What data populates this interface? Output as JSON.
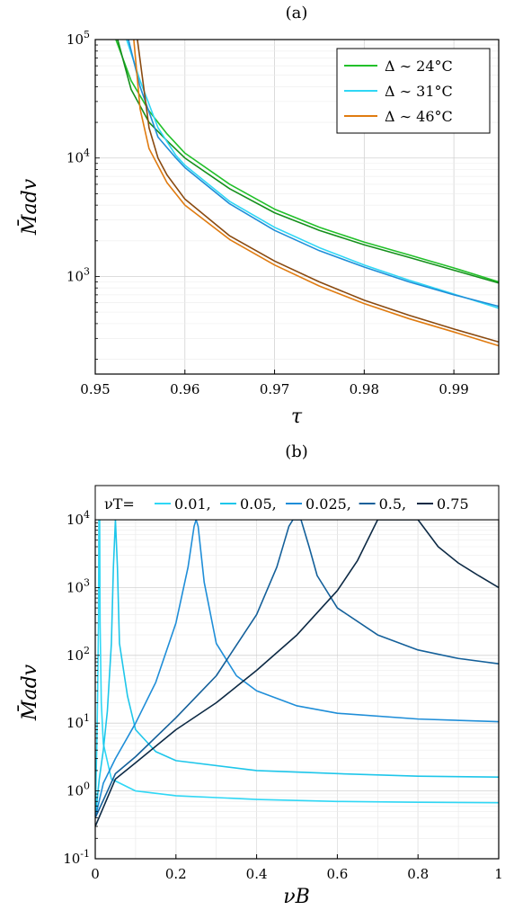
{
  "chart_data": [
    {
      "panel_label": "(a)",
      "type": "line",
      "xlabel": "τ",
      "ylabel": "M̄adv",
      "xlim": [
        0.95,
        0.995
      ],
      "ylim": [
        150,
        100000
      ],
      "yscale": "log",
      "grid": true,
      "legend_position": "top-right",
      "x_ticks": [
        "0.95",
        "0.96",
        "0.97",
        "0.98",
        "0.99"
      ],
      "y_ticks": [
        "10^3",
        "10^4",
        "10^5"
      ],
      "series": [
        {
          "name": "Δ ∼ 24°C",
          "color": "#22c02a",
          "role": "legend",
          "x": [
            0.9523,
            0.954,
            0.956,
            0.958,
            0.96,
            0.965,
            0.97,
            0.975,
            0.98,
            0.985,
            0.99,
            0.995
          ],
          "y": [
            100000,
            45000,
            25000,
            16000,
            11000,
            6000,
            3700,
            2600,
            1950,
            1520,
            1180,
            900
          ]
        },
        {
          "name": "",
          "color": "#15901c",
          "role": "pair",
          "x": [
            0.9525,
            0.954,
            0.956,
            0.958,
            0.96,
            0.965,
            0.97,
            0.975,
            0.98,
            0.985,
            0.99,
            0.995
          ],
          "y": [
            100000,
            38000,
            20000,
            14000,
            10000,
            5500,
            3450,
            2450,
            1850,
            1450,
            1130,
            880
          ]
        },
        {
          "name": "Δ ∼ 31°C",
          "color": "#2fd7f5",
          "role": "legend",
          "x": [
            0.9535,
            0.955,
            0.957,
            0.959,
            0.96,
            0.965,
            0.97,
            0.975,
            0.98,
            0.985,
            0.99,
            0.995
          ],
          "y": [
            100000,
            45000,
            18000,
            10500,
            8700,
            4300,
            2600,
            1750,
            1250,
            930,
            710,
            540
          ]
        },
        {
          "name": "",
          "color": "#1f8ed8",
          "role": "pair",
          "x": [
            0.9537,
            0.955,
            0.957,
            0.959,
            0.96,
            0.965,
            0.97,
            0.975,
            0.98,
            0.985,
            0.99,
            0.995
          ],
          "y": [
            100000,
            40000,
            15000,
            10000,
            8300,
            4100,
            2450,
            1650,
            1200,
            900,
            700,
            560
          ]
        },
        {
          "name": "Δ ∼ 46°C",
          "color": "#e07b10",
          "role": "legend",
          "x": [
            0.9543,
            0.955,
            0.956,
            0.958,
            0.96,
            0.965,
            0.97,
            0.975,
            0.98,
            0.985,
            0.99,
            0.995
          ],
          "y": [
            100000,
            26000,
            12000,
            6200,
            4000,
            2050,
            1250,
            830,
            590,
            440,
            340,
            260
          ]
        },
        {
          "name": "",
          "color": "#8a4a10",
          "role": "pair",
          "x": [
            0.9547,
            0.956,
            0.957,
            0.958,
            0.96,
            0.965,
            0.97,
            0.975,
            0.98,
            0.985,
            0.99,
            0.995
          ],
          "y": [
            100000,
            18000,
            10000,
            7200,
            4500,
            2200,
            1350,
            900,
            630,
            470,
            360,
            280
          ]
        }
      ]
    },
    {
      "panel_label": "(b)",
      "type": "line",
      "xlabel": "νB",
      "ylabel": "M̄adv",
      "xlim": [
        0,
        1
      ],
      "ylim": [
        0.1,
        10000
      ],
      "yscale": "log",
      "grid": true,
      "legend_position": "top",
      "legend_title": "νT=",
      "x_ticks": [
        "0",
        "0.2",
        "0.4",
        "0.6",
        "0.8",
        "1"
      ],
      "y_ticks": [
        "10^-1",
        "10^0",
        "10^1",
        "10^2",
        "10^3",
        "10^4"
      ],
      "series": [
        {
          "name": "0.01,",
          "color": "#2fd7f5",
          "x": [
            0.0,
            0.002,
            0.004,
            0.006,
            0.008,
            0.009,
            0.01,
            0.011,
            0.012,
            0.015,
            0.02,
            0.04,
            0.1,
            0.2,
            0.4,
            0.6,
            0.8,
            1.0
          ],
          "y": [
            0.4,
            1.5,
            5,
            30,
            300,
            10000,
            10000,
            10000,
            300,
            20,
            5,
            1.5,
            1.0,
            0.85,
            0.75,
            0.7,
            0.68,
            0.67
          ]
        },
        {
          "name": "0.05,",
          "color": "#1ec6ea",
          "x": [
            0.0,
            0.01,
            0.02,
            0.03,
            0.04,
            0.045,
            0.05,
            0.055,
            0.06,
            0.08,
            0.1,
            0.15,
            0.2,
            0.4,
            0.6,
            0.8,
            1.0
          ],
          "y": [
            0.4,
            1.5,
            4,
            15,
            150,
            2000,
            10000,
            2000,
            150,
            25,
            8,
            3.8,
            2.8,
            2.0,
            1.8,
            1.65,
            1.6
          ]
        },
        {
          "name": "0.025,",
          "color": "#1f8ed8",
          "x": [
            0.0,
            0.02,
            0.05,
            0.1,
            0.15,
            0.2,
            0.23,
            0.245,
            0.25,
            0.255,
            0.27,
            0.3,
            0.35,
            0.4,
            0.5,
            0.6,
            0.8,
            1.0
          ],
          "y": [
            0.4,
            1.3,
            3,
            10,
            40,
            300,
            2000,
            8000,
            10000,
            8000,
            1200,
            150,
            50,
            30,
            18,
            14,
            11.5,
            10.5
          ]
        },
        {
          "name": "0.5,",
          "color": "#14609a",
          "x": [
            0.0,
            0.05,
            0.1,
            0.2,
            0.3,
            0.4,
            0.45,
            0.48,
            0.49,
            0.51,
            0.53,
            0.55,
            0.6,
            0.7,
            0.8,
            0.9,
            1.0
          ],
          "y": [
            0.4,
            1.8,
            3.2,
            12,
            50,
            400,
            2000,
            8000,
            10000,
            10000,
            4000,
            1500,
            500,
            200,
            120,
            90,
            75
          ]
        },
        {
          "name": "0.75",
          "color": "#0d2a45",
          "x": [
            0.0,
            0.05,
            0.1,
            0.2,
            0.3,
            0.4,
            0.5,
            0.6,
            0.65,
            0.7,
            0.8,
            0.85,
            0.9,
            0.95,
            1.0
          ],
          "y": [
            0.3,
            1.5,
            2.6,
            8,
            20,
            60,
            200,
            900,
            2500,
            10000,
            10000,
            4000,
            2300,
            1500,
            1000
          ]
        }
      ]
    }
  ]
}
